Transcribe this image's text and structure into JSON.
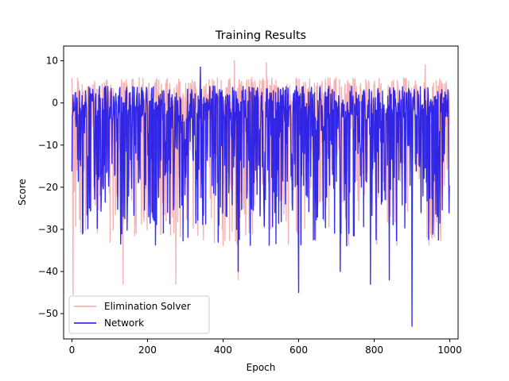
{
  "chart_data": {
    "type": "line",
    "title": "Training Results",
    "xlabel": "Epoch",
    "ylabel": "Score",
    "xlim": [
      -22,
      1022
    ],
    "ylim": [
      -56,
      13.5
    ],
    "xticks": [
      0,
      200,
      400,
      600,
      800,
      1000
    ],
    "yticks": [
      -50,
      -40,
      -30,
      -20,
      -10,
      0,
      10
    ],
    "grid": false,
    "legend_position": "lower-left",
    "n_points": 1000,
    "series": [
      {
        "name": "Elimination Solver",
        "color": "#f08080",
        "alpha": 0.6,
        "range": [
          -45.5,
          10
        ],
        "typical_range": [
          -20,
          6
        ],
        "spikes": [
          {
            "x": 3,
            "y": -45.5
          },
          {
            "x": 135,
            "y": -43
          },
          {
            "x": 275,
            "y": -43
          },
          {
            "x": 440,
            "y": -42
          },
          {
            "x": 430,
            "y": 10
          },
          {
            "x": 515,
            "y": 9.5
          },
          {
            "x": 935,
            "y": 9
          }
        ]
      },
      {
        "name": "Network",
        "color": "#0000ee",
        "alpha": 0.8,
        "range": [
          -53,
          8.5
        ],
        "typical_range": [
          -20,
          4
        ],
        "spikes": [
          {
            "x": 900,
            "y": -53
          },
          {
            "x": 600,
            "y": -45
          },
          {
            "x": 790,
            "y": -43
          },
          {
            "x": 440,
            "y": -40
          },
          {
            "x": 340,
            "y": 8.5
          },
          {
            "x": 710,
            "y": -40
          },
          {
            "x": 840,
            "y": -42
          }
        ]
      }
    ]
  }
}
